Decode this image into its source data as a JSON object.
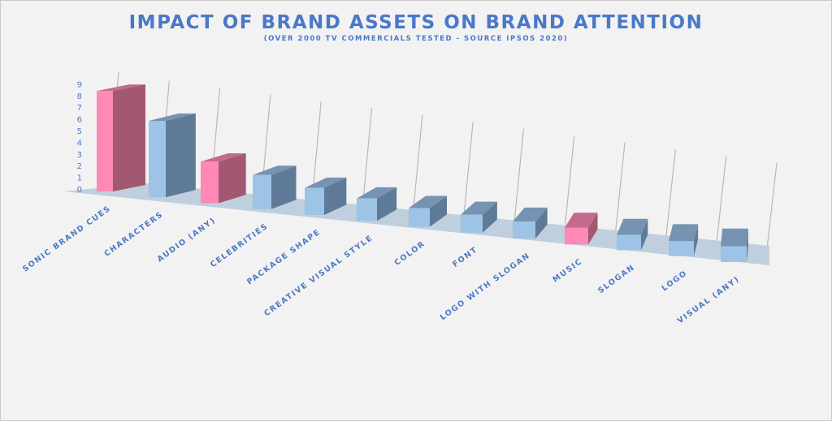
{
  "chart_data": {
    "type": "bar",
    "title": "IMPACT OF BRAND ASSETS ON BRAND ATTENTION",
    "subtitle": "(OVER 2000 TV COMMERCIALS TESTED - SOURCE IPSOS 2020)",
    "xlabel": "",
    "ylabel": "",
    "ylim": [
      0,
      9
    ],
    "yticks": [
      "0",
      "1",
      "2",
      "3",
      "4",
      "5",
      "6",
      "7",
      "8",
      "9"
    ],
    "grid": true,
    "categories": [
      "SONIC BRAND CUES",
      "CHARACTERS",
      "AUDIO (ANY)",
      "CELEBRITIES",
      "PACKAGE SHAPE",
      "CREATIVE VISUAL STYLE",
      "COLOR",
      "FONT",
      "LOGO WITH SLOGAN",
      "MUSIC",
      "SLOGAN",
      "LOGO",
      "VISUAL (ANY)"
    ],
    "values": [
      8.6,
      6.2,
      3.2,
      2.5,
      1.9,
      1.5,
      1.2,
      1.1,
      1.0,
      0.95,
      0.85,
      0.8,
      0.8
    ],
    "highlight": [
      true,
      false,
      true,
      false,
      false,
      false,
      false,
      false,
      false,
      true,
      false,
      false,
      false
    ],
    "colors": {
      "highlight_front": "#ff88b4",
      "highlight_side": "#a35872",
      "highlight_top": "#c46a8c",
      "normal_front": "#9dc3e6",
      "normal_side": "#5f7a96",
      "normal_top": "#7693b3",
      "text": "#4a78c8",
      "floor": "#c0cfdd"
    }
  }
}
